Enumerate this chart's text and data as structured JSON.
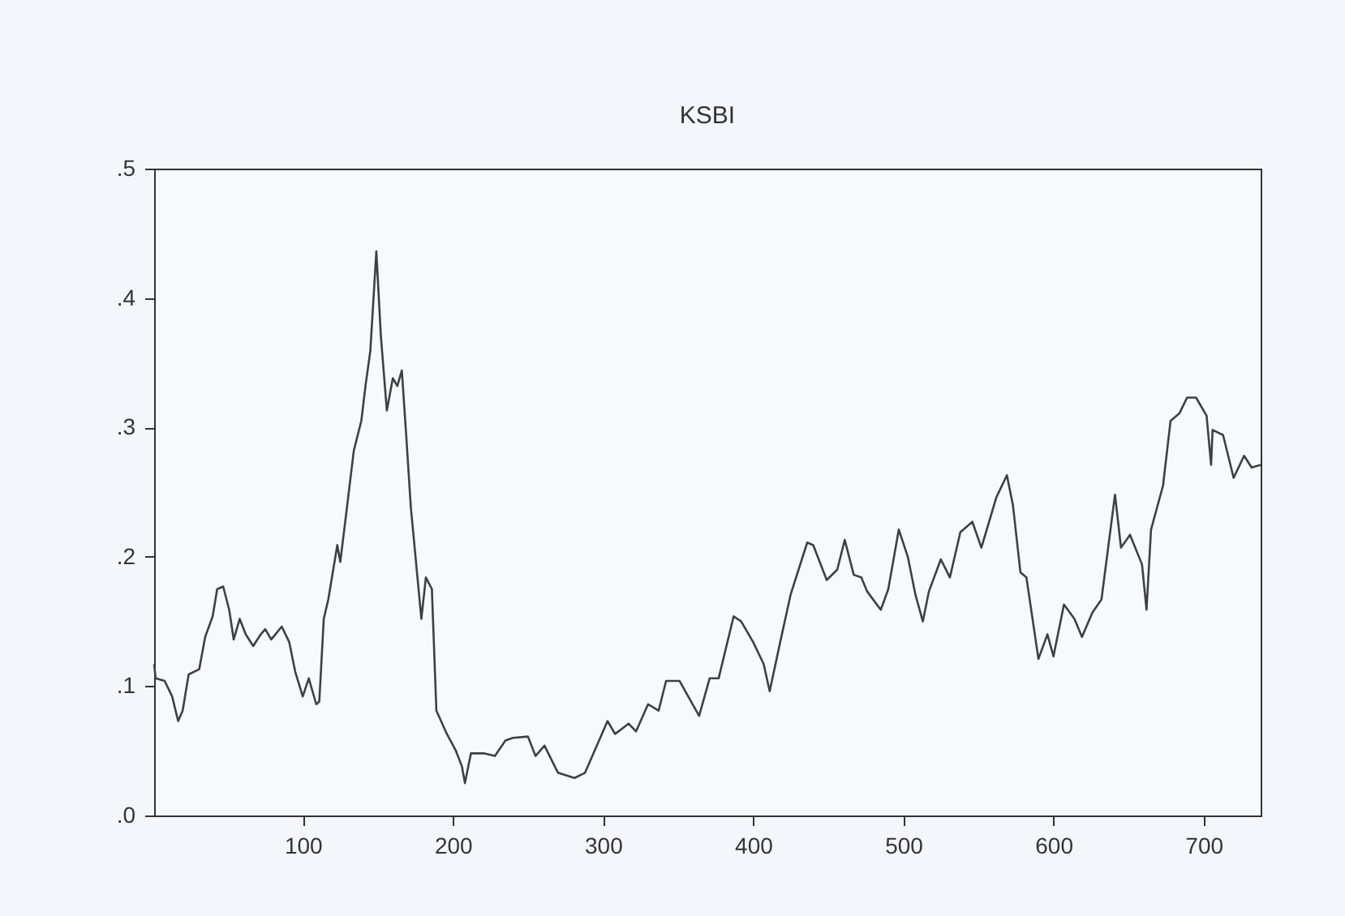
{
  "chart_data": {
    "type": "line",
    "title": "KSBI",
    "xlim": [
      1,
      738
    ],
    "xticks": [
      100,
      200,
      300,
      400,
      500,
      600,
      700
    ],
    "ylim": [
      0,
      0.5
    ],
    "yticks": [
      {
        "value": 0,
        "label": ".0"
      },
      {
        "value": 0.1,
        "label": ".1"
      },
      {
        "value": 0.2,
        "label": ".2"
      },
      {
        "value": 0.3,
        "label": ".3"
      },
      {
        "value": 0.4,
        "label": ".4"
      },
      {
        "value": 0.5,
        "label": ".5"
      }
    ],
    "grid": false,
    "line_style": "solid",
    "marker": "none",
    "series": [
      {
        "color": "#404040",
        "x": [
          1,
          2,
          8,
          13,
          17,
          20,
          24,
          31,
          35,
          40,
          43,
          47,
          51,
          54,
          58,
          62,
          67,
          72,
          75,
          79,
          86,
          91,
          95,
          100,
          104,
          109,
          111,
          114,
          117,
          123,
          125,
          129,
          134,
          139,
          142,
          145,
          149,
          152,
          156,
          160,
          163,
          166,
          169,
          172,
          179,
          182,
          186,
          189,
          196,
          202,
          206,
          208,
          212,
          221,
          228,
          235,
          240,
          250,
          255,
          261,
          270,
          281,
          288,
          303,
          308,
          317,
          322,
          330,
          337,
          342,
          351,
          364,
          371,
          377,
          387,
          392,
          400,
          407,
          411,
          418,
          425,
          436,
          440,
          449,
          456,
          461,
          467,
          472,
          476,
          485,
          490,
          497,
          503,
          508,
          513,
          517,
          525,
          531,
          538,
          546,
          552,
          562,
          569,
          573,
          578,
          582,
          590,
          596,
          600,
          607,
          614,
          619,
          626,
          632,
          641,
          645,
          651,
          659,
          662,
          665,
          673,
          678,
          684,
          689,
          695,
          702,
          705,
          706,
          713,
          720,
          727,
          732,
          738
        ],
        "values": [
          0.117,
          0.106,
          0.104,
          0.092,
          0.073,
          0.081,
          0.109,
          0.113,
          0.138,
          0.154,
          0.175,
          0.177,
          0.159,
          0.136,
          0.152,
          0.14,
          0.131,
          0.14,
          0.144,
          0.136,
          0.146,
          0.134,
          0.111,
          0.092,
          0.106,
          0.086,
          0.088,
          0.152,
          0.167,
          0.209,
          0.196,
          0.234,
          0.282,
          0.305,
          0.334,
          0.359,
          0.436,
          0.371,
          0.313,
          0.338,
          0.332,
          0.344,
          0.292,
          0.238,
          0.152,
          0.184,
          0.175,
          0.081,
          0.063,
          0.05,
          0.038,
          0.025,
          0.048,
          0.048,
          0.046,
          0.058,
          0.06,
          0.061,
          0.046,
          0.054,
          0.033,
          0.029,
          0.033,
          0.073,
          0.063,
          0.071,
          0.065,
          0.086,
          0.081,
          0.104,
          0.104,
          0.077,
          0.106,
          0.106,
          0.154,
          0.15,
          0.134,
          0.117,
          0.096,
          0.134,
          0.171,
          0.211,
          0.209,
          0.182,
          0.19,
          0.213,
          0.186,
          0.184,
          0.173,
          0.159,
          0.175,
          0.221,
          0.2,
          0.171,
          0.15,
          0.173,
          0.198,
          0.184,
          0.219,
          0.227,
          0.207,
          0.246,
          0.263,
          0.24,
          0.188,
          0.184,
          0.121,
          0.14,
          0.123,
          0.163,
          0.152,
          0.138,
          0.157,
          0.167,
          0.248,
          0.207,
          0.217,
          0.194,
          0.159,
          0.221,
          0.255,
          0.305,
          0.311,
          0.323,
          0.323,
          0.309,
          0.271,
          0.298,
          0.294,
          0.261,
          0.278,
          0.269,
          0.271
        ]
      }
    ]
  }
}
